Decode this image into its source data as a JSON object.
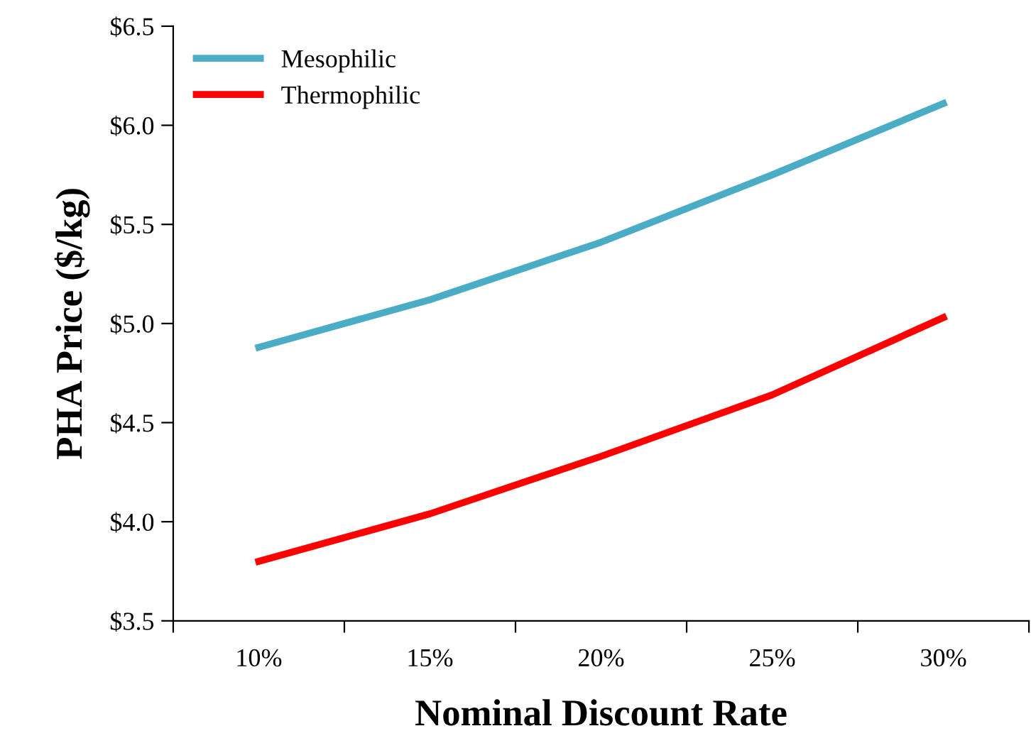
{
  "chart_data": {
    "type": "line",
    "xlabel": "Nominal Discount Rate",
    "ylabel": "PHA Price ($/kg)",
    "categories": [
      "10%",
      "15%",
      "20%",
      "25%",
      "30%"
    ],
    "series": [
      {
        "name": "Mesophilic",
        "color": "#4bacc6",
        "values": [
          4.88,
          5.12,
          5.41,
          5.75,
          6.11
        ]
      },
      {
        "name": "Thermophilic",
        "color": "#ff0000",
        "values": [
          3.8,
          4.04,
          4.33,
          4.64,
          5.03
        ]
      }
    ],
    "ylim": [
      3.5,
      6.5
    ],
    "yticks": [
      {
        "value": 3.5,
        "label": "$3.5"
      },
      {
        "value": 4.0,
        "label": "$4.0"
      },
      {
        "value": 4.5,
        "label": "$4.5"
      },
      {
        "value": 5.0,
        "label": "$5.0"
      },
      {
        "value": 5.5,
        "label": "$5.5"
      },
      {
        "value": 6.0,
        "label": "$6.0"
      },
      {
        "value": 6.5,
        "label": "$6.5"
      }
    ],
    "grid": false,
    "legend": "top left",
    "marker": "none",
    "line_style": "solid"
  }
}
